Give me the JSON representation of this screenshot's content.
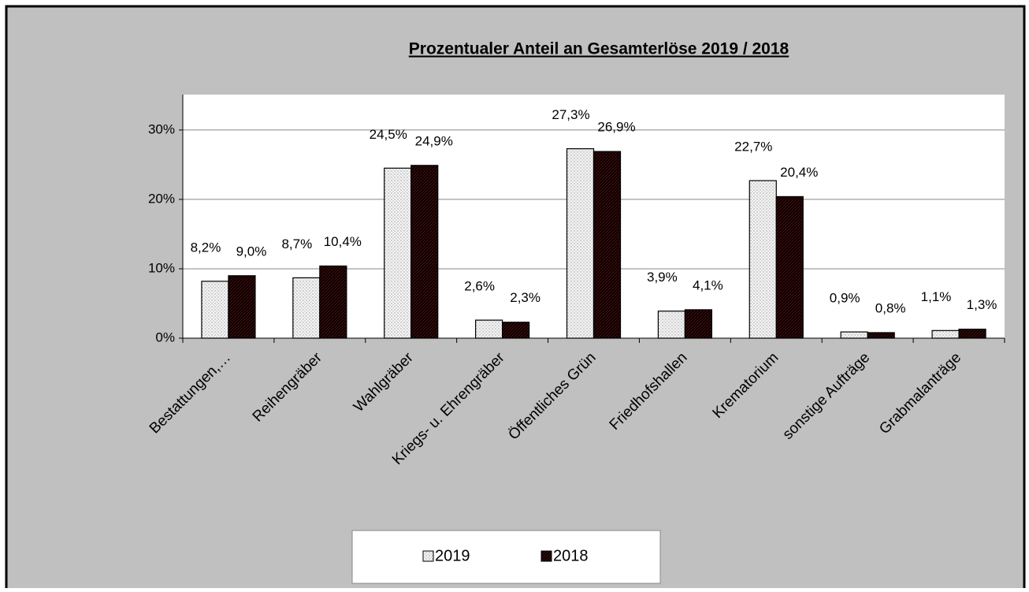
{
  "chart_data": {
    "type": "bar",
    "title": "Prozentualer Anteil an Gesamterlöse 2019 / 2018",
    "categories": [
      "Bestattungen,…",
      "Reihengräber",
      "Wahlgräber",
      "Kriegs- u. Ehrengräber",
      "Öffentliches Grün",
      "Friedhofshallen",
      "Krematorium",
      "sonstige Aufträge",
      "Grabmalanträge"
    ],
    "series": [
      {
        "name": "2019",
        "color": "#e6e6e6",
        "values": [
          8.2,
          8.7,
          24.5,
          2.6,
          27.3,
          3.9,
          22.7,
          0.9,
          1.1
        ],
        "value_labels": [
          "8,2%",
          "8,7%",
          "24,5%",
          "2,6%",
          "27,3%",
          "3,9%",
          "22,7%",
          "0,9%",
          "1,1%"
        ]
      },
      {
        "name": "2018",
        "color": "#1a0808",
        "values": [
          9.0,
          10.4,
          24.9,
          2.3,
          26.9,
          4.1,
          20.4,
          0.8,
          1.3
        ],
        "value_labels": [
          "9,0%",
          "10,4%",
          "24,9%",
          "2,3%",
          "26,9%",
          "4,1%",
          "20,4%",
          "0,8%",
          "1,3%"
        ]
      }
    ],
    "ylim": [
      0,
      35.1
    ],
    "yticks": [
      {
        "value": 0,
        "label": "0%"
      },
      {
        "value": 10,
        "label": "10%"
      },
      {
        "value": 20,
        "label": "20%"
      },
      {
        "value": 30,
        "label": "30%"
      }
    ],
    "grid": true,
    "legend": "bottom"
  }
}
